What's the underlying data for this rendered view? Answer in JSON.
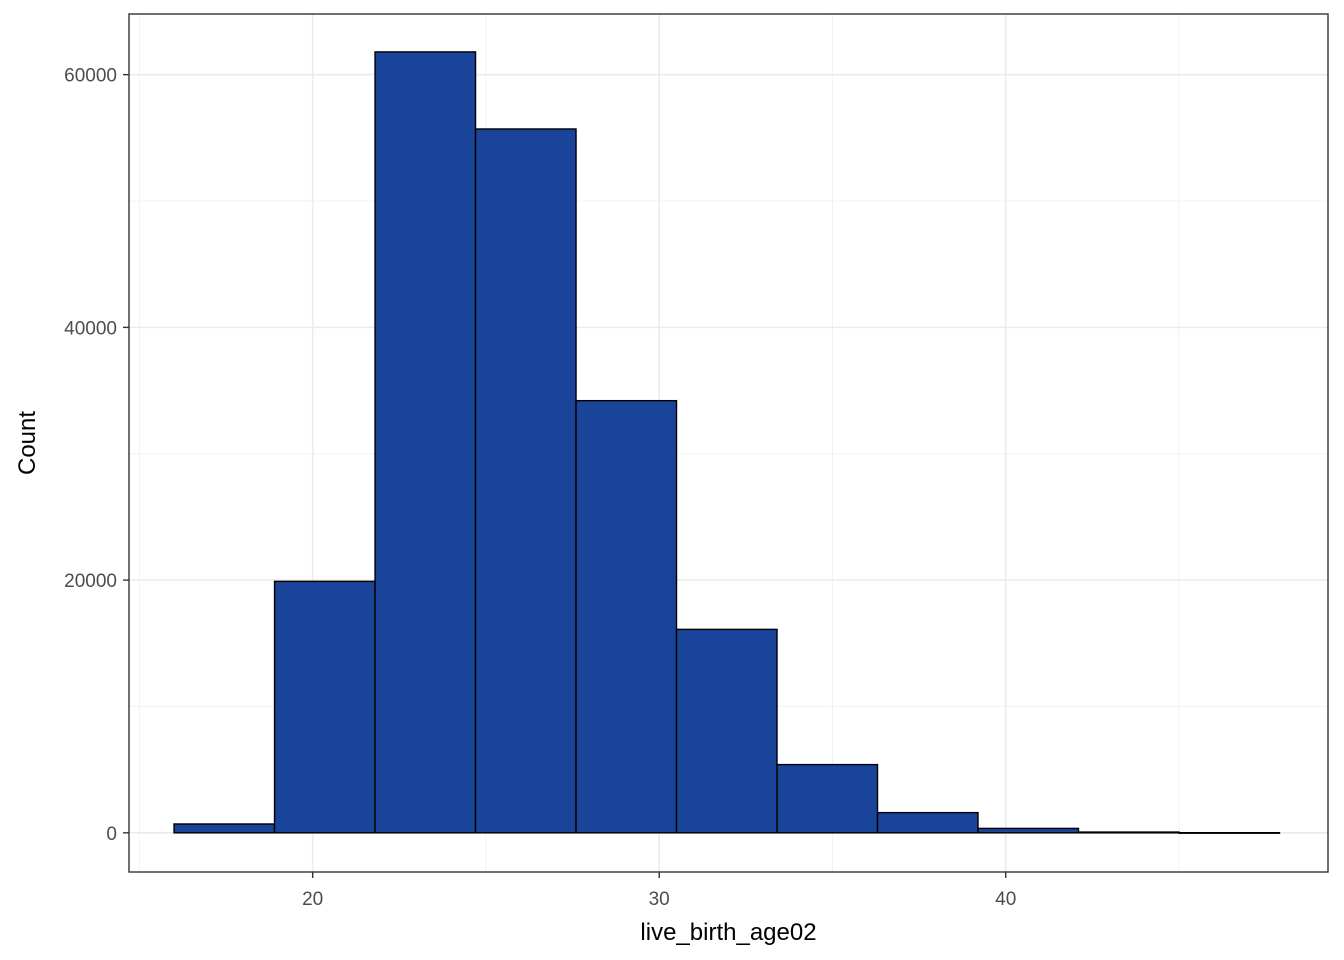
{
  "chart_data": {
    "type": "bar",
    "subtype": "histogram",
    "title": "",
    "xlabel": "live_birth_age02",
    "ylabel": "Count",
    "xlim": [
      14.7,
      49.3
    ],
    "ylim": [
      -3100,
      64800
    ],
    "x_ticks_major": [
      20,
      30,
      40
    ],
    "x_ticks_minor": [
      15,
      25,
      35,
      45
    ],
    "y_ticks_major": [
      0,
      20000,
      40000,
      60000
    ],
    "y_ticks_minor": [
      10000,
      30000,
      50000
    ],
    "grid": true,
    "legend": "none",
    "colors": {
      "bar_fill": "#1A4499",
      "bar_edge": "#000000",
      "grid": "#EBEBEB",
      "panel_border": "#333333",
      "tick_text": "#4D4D4D"
    },
    "bins": [
      {
        "x0": 16.0,
        "x1": 18.9,
        "count": 700
      },
      {
        "x0": 18.9,
        "x1": 21.8,
        "count": 19900
      },
      {
        "x0": 21.8,
        "x1": 24.7,
        "count": 61800
      },
      {
        "x0": 24.7,
        "x1": 27.6,
        "count": 55700
      },
      {
        "x0": 27.6,
        "x1": 30.5,
        "count": 34200
      },
      {
        "x0": 30.5,
        "x1": 33.4,
        "count": 16100
      },
      {
        "x0": 33.4,
        "x1": 36.3,
        "count": 5400
      },
      {
        "x0": 36.3,
        "x1": 39.2,
        "count": 1600
      },
      {
        "x0": 39.2,
        "x1": 42.1,
        "count": 350
      },
      {
        "x0": 42.1,
        "x1": 45.0,
        "count": 60
      },
      {
        "x0": 45.0,
        "x1": 47.9,
        "count": 10
      }
    ]
  }
}
